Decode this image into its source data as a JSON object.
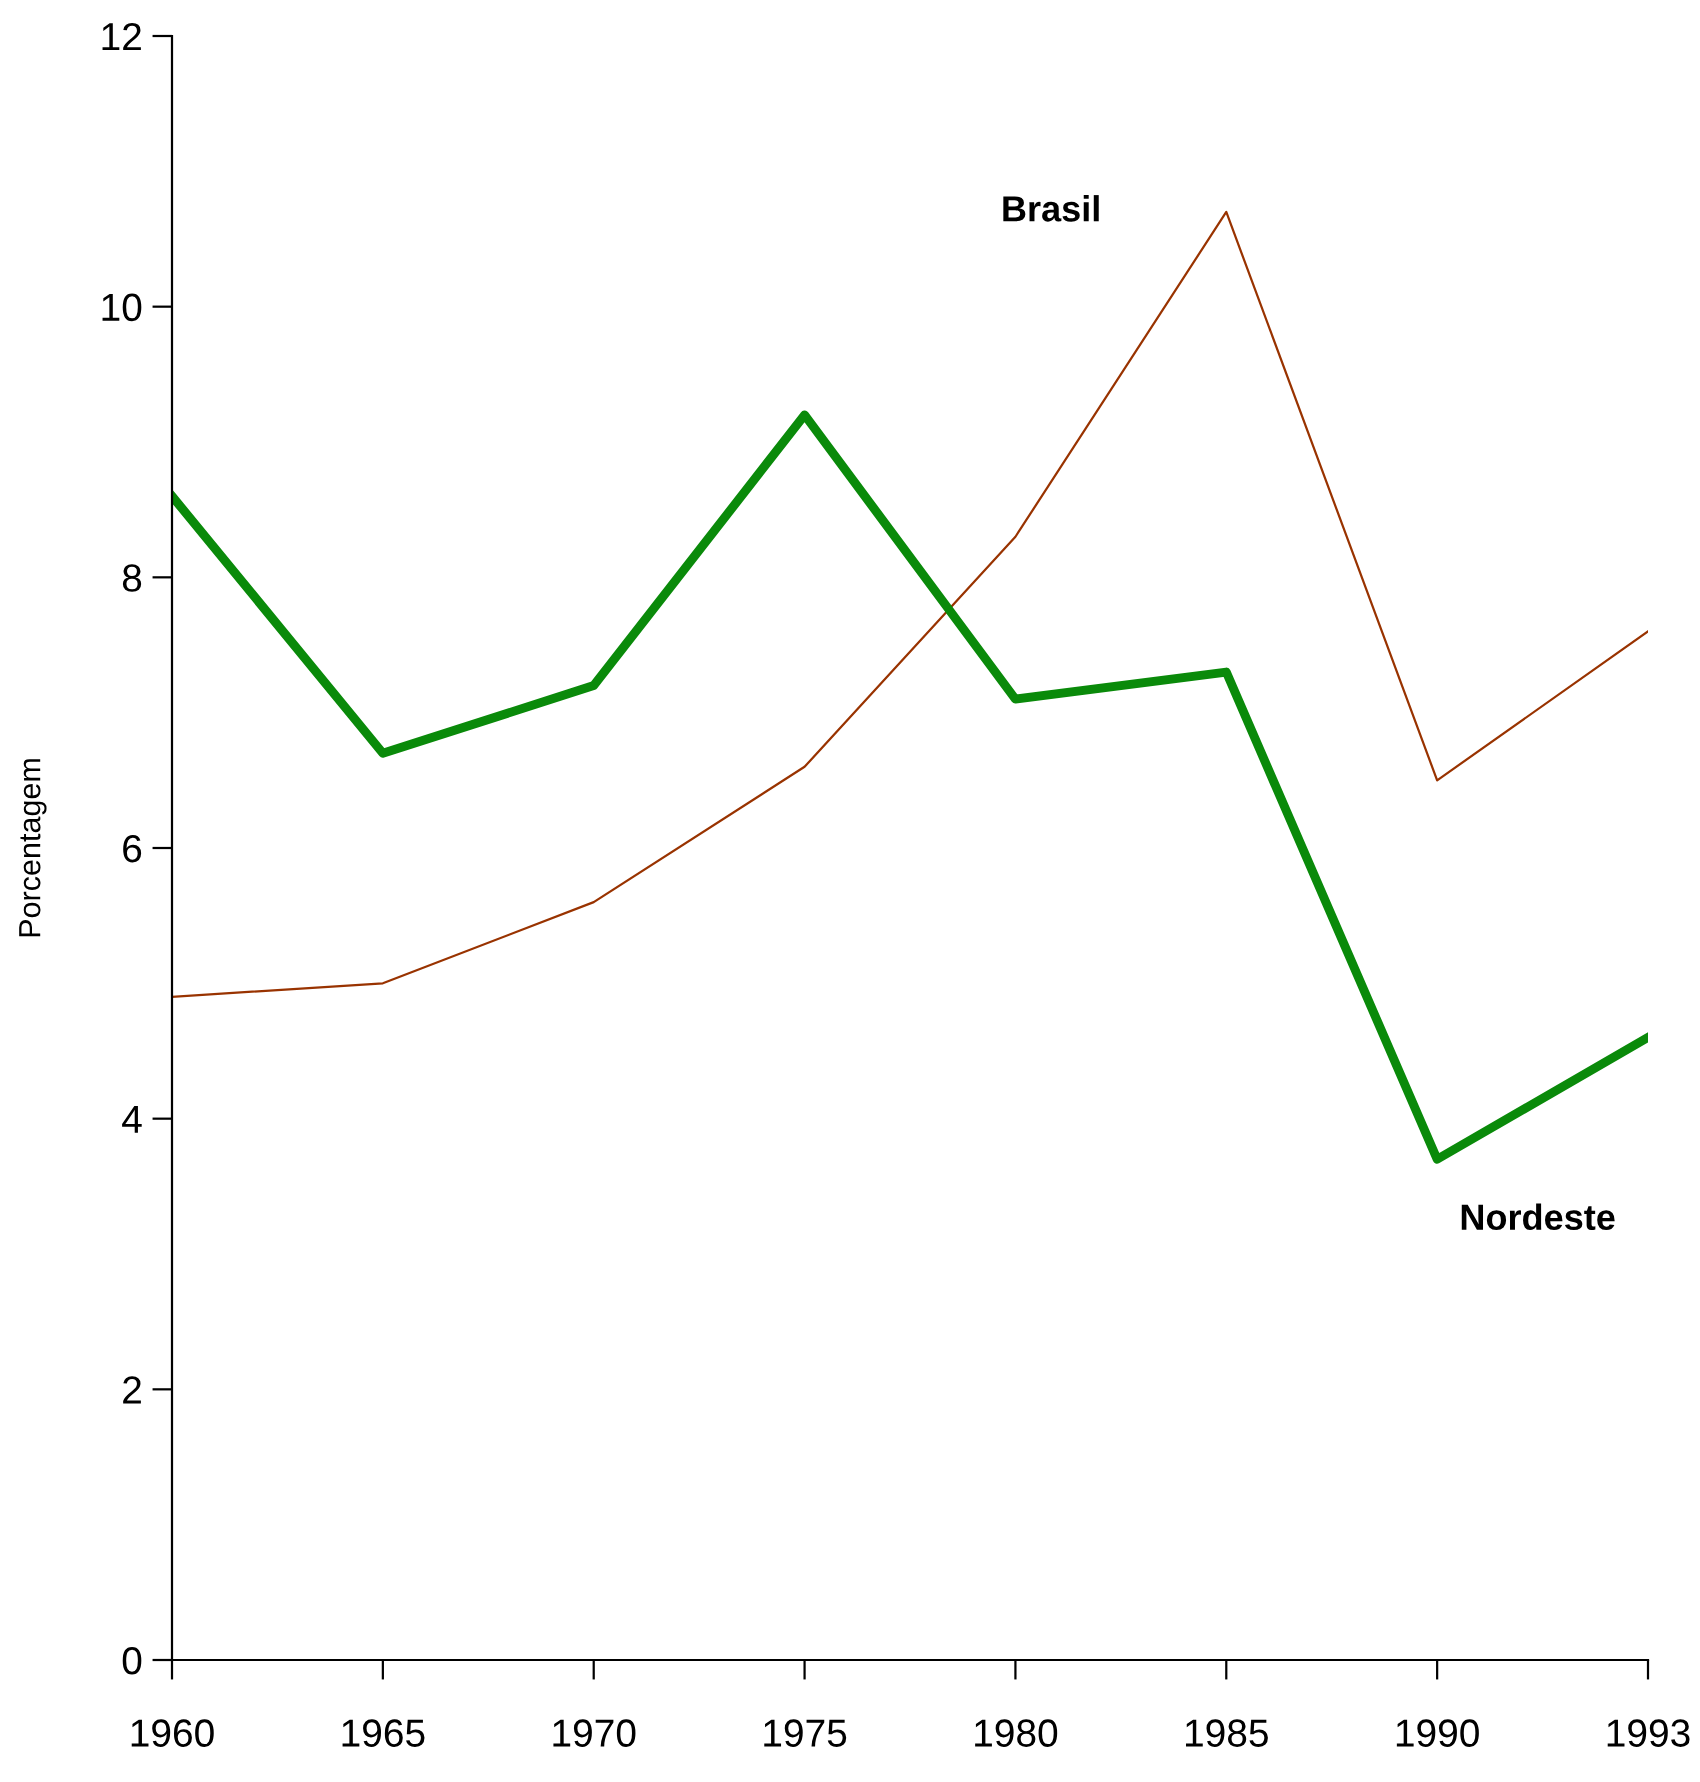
{
  "chart_data": {
    "type": "line",
    "ylabel": "Porcentagem",
    "categories": [
      "1960",
      "1965",
      "1970",
      "1975",
      "1980",
      "1985",
      "1990",
      "1993"
    ],
    "series": [
      {
        "name": "Brasil",
        "color": "#993300",
        "values": [
          4.9,
          5.0,
          5.6,
          6.6,
          8.3,
          10.7,
          6.5,
          7.6
        ]
      },
      {
        "name": "Nordeste",
        "color": "#0a8a0a",
        "values": [
          8.6,
          6.7,
          7.2,
          9.2,
          7.1,
          7.3,
          3.7,
          4.6
        ]
      }
    ],
    "ylim": [
      0,
      12
    ],
    "yticks": [
      0,
      2,
      4,
      6,
      8,
      10,
      12
    ],
    "grid": false,
    "legend": false,
    "marker": "none",
    "line_style": "solid"
  }
}
